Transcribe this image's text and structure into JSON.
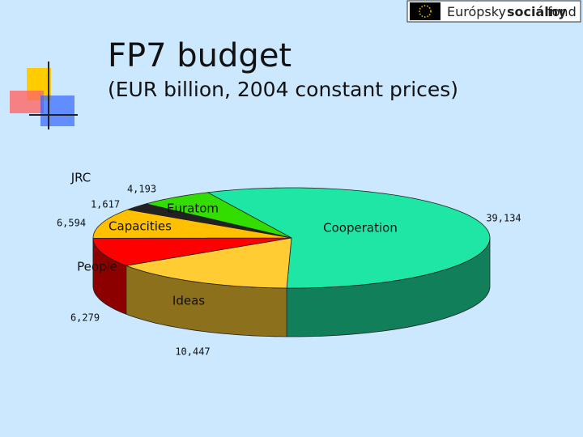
{
  "logo": {
    "words": [
      "Európsky",
      "sociálny",
      "fond"
    ]
  },
  "chart_data": {
    "type": "pie3d",
    "title": "FP7 budget",
    "subtitle": "(EUR billion, 2004 constant prices)",
    "categories": [
      "Cooperation",
      "Ideas",
      "People",
      "Capacities",
      "JRC",
      "Euratom"
    ],
    "values": [
      39134,
      10447,
      6279,
      6594,
      1617,
      4193
    ],
    "value_labels": [
      "39,134",
      "10,447",
      "6,279",
      "6,594",
      "1,617",
      "4,193"
    ],
    "colors": [
      "#1ee6a4",
      "#ffcc33",
      "#ff0000",
      "#ffc000",
      "#222222",
      "#33dd00"
    ]
  }
}
